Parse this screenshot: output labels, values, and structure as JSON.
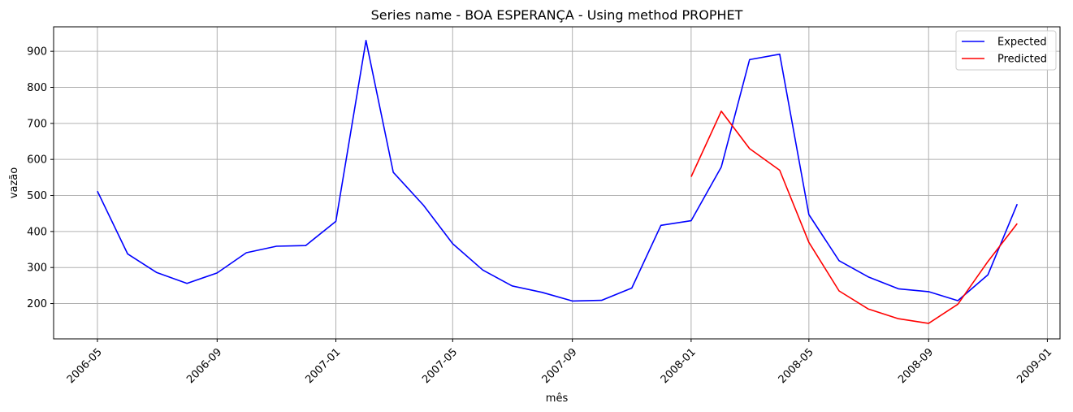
{
  "chart_data": {
    "type": "line",
    "title": "Series name - BOA ESPERANÇA - Using method PROPHET",
    "xlabel": "mês",
    "ylabel": "vazão",
    "xlim": [
      "2006-03-17",
      "2009-01-14"
    ],
    "ylim": [
      102,
      968
    ],
    "x_ticks": [
      "2006-05",
      "2006-09",
      "2007-01",
      "2007-05",
      "2007-09",
      "2008-01",
      "2008-05",
      "2008-09",
      "2009-01"
    ],
    "y_ticks": [
      200,
      300,
      400,
      500,
      600,
      700,
      800,
      900
    ],
    "grid": true,
    "legend_position": "top-right",
    "series": [
      {
        "name": "Expected",
        "color": "#0000ff",
        "points": [
          [
            "2006-05-01",
            512
          ],
          [
            "2006-06-01",
            338
          ],
          [
            "2006-07-01",
            286
          ],
          [
            "2006-08-01",
            256
          ],
          [
            "2006-09-01",
            285
          ],
          [
            "2006-10-01",
            341
          ],
          [
            "2006-11-01",
            359
          ],
          [
            "2006-12-01",
            361
          ],
          [
            "2007-01-01",
            428
          ],
          [
            "2007-02-01",
            930
          ],
          [
            "2007-03-01",
            564
          ],
          [
            "2007-04-01",
            473
          ],
          [
            "2007-05-01",
            366
          ],
          [
            "2007-06-01",
            293
          ],
          [
            "2007-07-01",
            249
          ],
          [
            "2007-08-01",
            231
          ],
          [
            "2007-09-01",
            207
          ],
          [
            "2007-10-01",
            209
          ],
          [
            "2007-11-01",
            243
          ],
          [
            "2007-12-01",
            417
          ],
          [
            "2008-01-01",
            430
          ],
          [
            "2008-02-01",
            579
          ],
          [
            "2008-03-01",
            877
          ],
          [
            "2008-04-01",
            892
          ],
          [
            "2008-05-01",
            447
          ],
          [
            "2008-06-01",
            319
          ],
          [
            "2008-07-01",
            274
          ],
          [
            "2008-08-01",
            241
          ],
          [
            "2008-09-01",
            233
          ],
          [
            "2008-10-01",
            208
          ],
          [
            "2008-11-01",
            280
          ],
          [
            "2008-12-01",
            476
          ]
        ]
      },
      {
        "name": "Predicted",
        "color": "#ff0000",
        "points": [
          [
            "2008-01-01",
            552
          ],
          [
            "2008-02-01",
            734
          ],
          [
            "2008-03-01",
            630
          ],
          [
            "2008-04-01",
            570
          ],
          [
            "2008-05-01",
            370
          ],
          [
            "2008-06-01",
            235
          ],
          [
            "2008-07-01",
            185
          ],
          [
            "2008-08-01",
            158
          ],
          [
            "2008-09-01",
            145
          ],
          [
            "2008-10-01",
            198
          ],
          [
            "2008-11-01",
            317
          ],
          [
            "2008-12-01",
            422
          ]
        ]
      }
    ]
  }
}
